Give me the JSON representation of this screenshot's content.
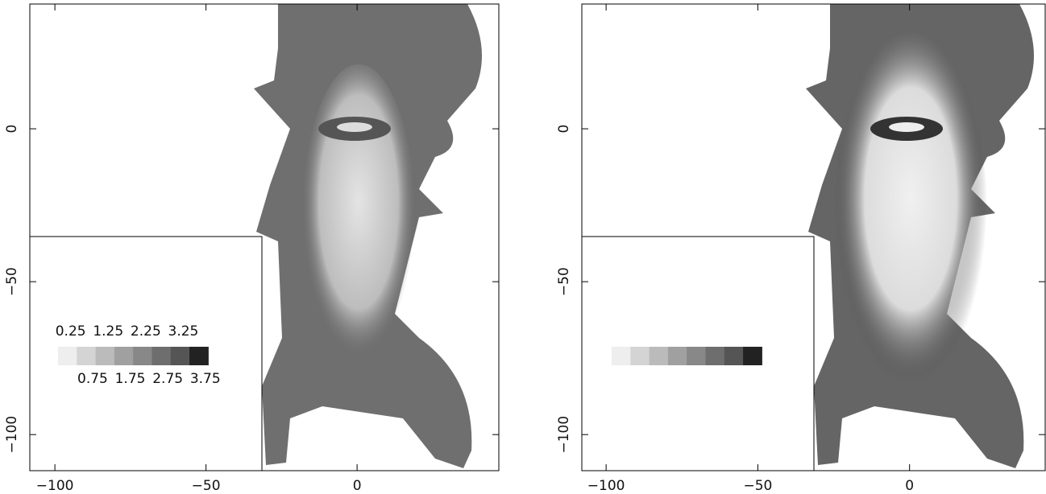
{
  "chart_data": [
    {
      "type": "image",
      "xlim": [
        -108.3,
        46.9
      ],
      "ylim": [
        -111.8,
        40.8
      ],
      "xticks": [
        {
          "value": -100,
          "label": "−100"
        },
        {
          "value": -50,
          "label": "−50"
        },
        0
      ],
      "yticks": [
        0,
        {
          "value": -50,
          "label": "−50"
        },
        {
          "value": -100,
          "label": "−100"
        }
      ],
      "colorbar": {
        "values": [
          0.25,
          0.75,
          1.25,
          1.75,
          2.25,
          2.75,
          3.25,
          3.75
        ],
        "colors": [
          "#eeeeee",
          "#d4d4d4",
          "#bbbbbb",
          "#a0a0a0",
          "#888888",
          "#6e6e6e",
          "#555555",
          "#222222"
        ]
      }
    },
    {
      "type": "image",
      "xlim": [
        -108.0,
        44.7
      ],
      "ylim": [
        -111.8,
        40.8
      ],
      "xticks": [
        {
          "value": -100,
          "label": "−100"
        },
        {
          "value": -50,
          "label": "−50"
        },
        0
      ],
      "yticks": [
        0,
        {
          "value": -50,
          "label": "−50"
        },
        {
          "value": -100,
          "label": "−100"
        }
      ],
      "colorbar": {
        "colors": [
          "#eeeeee",
          "#d4d4d4",
          "#bbbbbb",
          "#a0a0a0",
          "#888888",
          "#6e6e6e",
          "#555555",
          "#222222"
        ]
      }
    }
  ]
}
